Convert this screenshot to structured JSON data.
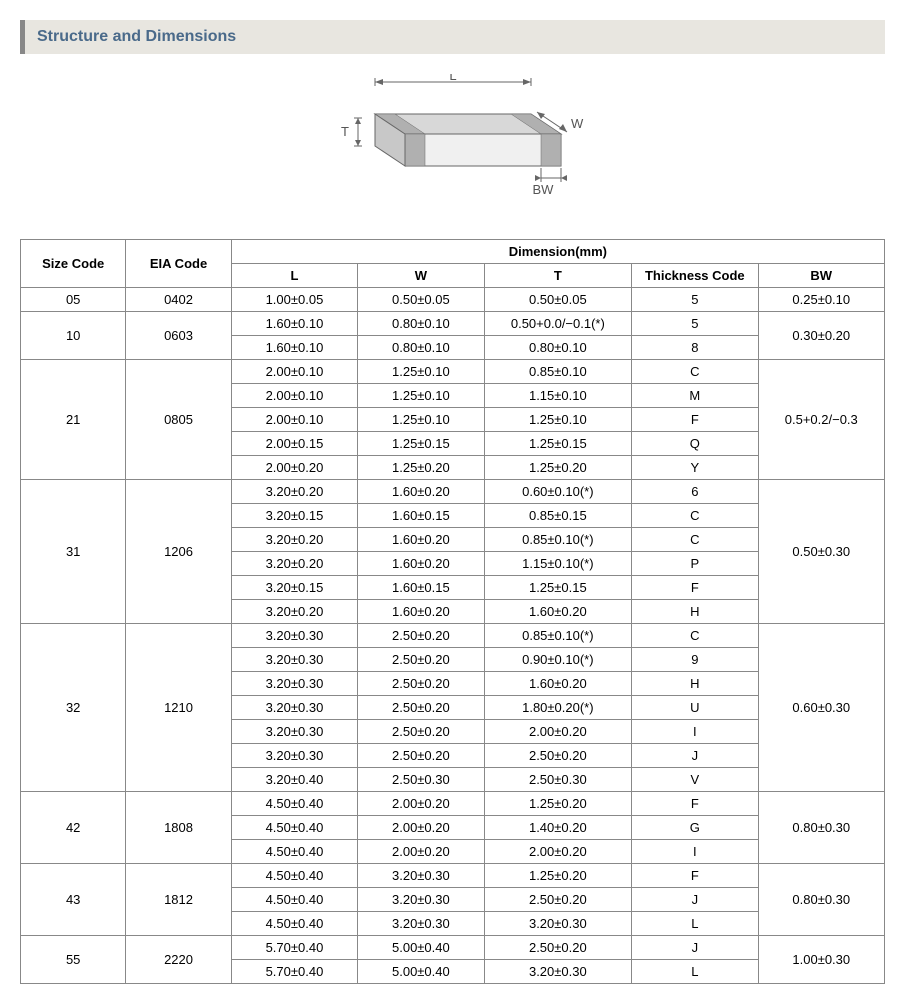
{
  "section_title": "Structure and Dimensions",
  "diagram": {
    "labels": {
      "L": "L",
      "W": "W",
      "T": "T",
      "BW": "BW"
    },
    "stroke": "#666666",
    "fill_top": "#d8d8d8",
    "fill_front": "#f0f0f0",
    "fill_side": "#c8c8c8",
    "fill_term": "#b0b0b0"
  },
  "table": {
    "h_size": "Size Code",
    "h_eia": "EIA Code",
    "h_dim": "Dimension(mm)",
    "h_l": "L",
    "h_w": "W",
    "h_t": "T",
    "h_tc": "Thickness  Code",
    "h_bw": "BW",
    "groups": [
      {
        "size": "05",
        "eia": "0402",
        "bw": "0.25±0.10",
        "rows": [
          {
            "l": "1.00±0.05",
            "w": "0.50±0.05",
            "t": "0.50±0.05",
            "tc": "5"
          }
        ]
      },
      {
        "size": "10",
        "eia": "0603",
        "bw": "0.30±0.20",
        "rows": [
          {
            "l": "1.60±0.10",
            "w": "0.80±0.10",
            "t": "0.50+0.0/−0.1(*)",
            "tc": "5"
          },
          {
            "l": "1.60±0.10",
            "w": "0.80±0.10",
            "t": "0.80±0.10",
            "tc": "8"
          }
        ]
      },
      {
        "size": "21",
        "eia": "0805",
        "bw": "0.5+0.2/−0.3",
        "rows": [
          {
            "l": "2.00±0.10",
            "w": "1.25±0.10",
            "t": "0.85±0.10",
            "tc": "C"
          },
          {
            "l": "2.00±0.10",
            "w": "1.25±0.10",
            "t": "1.15±0.10",
            "tc": "M"
          },
          {
            "l": "2.00±0.10",
            "w": "1.25±0.10",
            "t": "1.25±0.10",
            "tc": "F"
          },
          {
            "l": "2.00±0.15",
            "w": "1.25±0.15",
            "t": "1.25±0.15",
            "tc": "Q"
          },
          {
            "l": "2.00±0.20",
            "w": "1.25±0.20",
            "t": "1.25±0.20",
            "tc": "Y"
          }
        ]
      },
      {
        "size": "31",
        "eia": "1206",
        "bw": "0.50±0.30",
        "rows": [
          {
            "l": "3.20±0.20",
            "w": "1.60±0.20",
            "t": "0.60±0.10(*)",
            "tc": "6"
          },
          {
            "l": "3.20±0.15",
            "w": "1.60±0.15",
            "t": "0.85±0.15",
            "tc": "C"
          },
          {
            "l": "3.20±0.20",
            "w": "1.60±0.20",
            "t": "0.85±0.10(*)",
            "tc": "C"
          },
          {
            "l": "3.20±0.20",
            "w": "1.60±0.20",
            "t": "1.15±0.10(*)",
            "tc": "P"
          },
          {
            "l": "3.20±0.15",
            "w": "1.60±0.15",
            "t": "1.25±0.15",
            "tc": "F"
          },
          {
            "l": "3.20±0.20",
            "w": "1.60±0.20",
            "t": "1.60±0.20",
            "tc": "H"
          }
        ]
      },
      {
        "size": "32",
        "eia": "1210",
        "bw": "0.60±0.30",
        "rows": [
          {
            "l": "3.20±0.30",
            "w": "2.50±0.20",
            "t": "0.85±0.10(*)",
            "tc": "C"
          },
          {
            "l": "3.20±0.30",
            "w": "2.50±0.20",
            "t": "0.90±0.10(*)",
            "tc": "9"
          },
          {
            "l": "3.20±0.30",
            "w": "2.50±0.20",
            "t": "1.60±0.20",
            "tc": "H"
          },
          {
            "l": "3.20±0.30",
            "w": "2.50±0.20",
            "t": "1.80±0.20(*)",
            "tc": "U"
          },
          {
            "l": "3.20±0.30",
            "w": "2.50±0.20",
            "t": "2.00±0.20",
            "tc": "I"
          },
          {
            "l": "3.20±0.30",
            "w": "2.50±0.20",
            "t": "2.50±0.20",
            "tc": "J"
          },
          {
            "l": "3.20±0.40",
            "w": "2.50±0.30",
            "t": "2.50±0.30",
            "tc": "V"
          }
        ]
      },
      {
        "size": "42",
        "eia": "1808",
        "bw": "0.80±0.30",
        "rows": [
          {
            "l": "4.50±0.40",
            "w": "2.00±0.20",
            "t": "1.25±0.20",
            "tc": "F"
          },
          {
            "l": "4.50±0.40",
            "w": "2.00±0.20",
            "t": "1.40±0.20",
            "tc": "G"
          },
          {
            "l": "4.50±0.40",
            "w": "2.00±0.20",
            "t": "2.00±0.20",
            "tc": "I"
          }
        ]
      },
      {
        "size": "43",
        "eia": "1812",
        "bw": "0.80±0.30",
        "rows": [
          {
            "l": "4.50±0.40",
            "w": "3.20±0.30",
            "t": "1.25±0.20",
            "tc": "F"
          },
          {
            "l": "4.50±0.40",
            "w": "3.20±0.30",
            "t": "2.50±0.20",
            "tc": "J"
          },
          {
            "l": "4.50±0.40",
            "w": "3.20±0.30",
            "t": "3.20±0.30",
            "tc": "L"
          }
        ]
      },
      {
        "size": "55",
        "eia": "2220",
        "bw": "1.00±0.30",
        "rows": [
          {
            "l": "5.70±0.40",
            "w": "5.00±0.40",
            "t": "2.50±0.20",
            "tc": "J"
          },
          {
            "l": "5.70±0.40",
            "w": "5.00±0.40",
            "t": "3.20±0.30",
            "tc": "L"
          }
        ]
      }
    ]
  }
}
